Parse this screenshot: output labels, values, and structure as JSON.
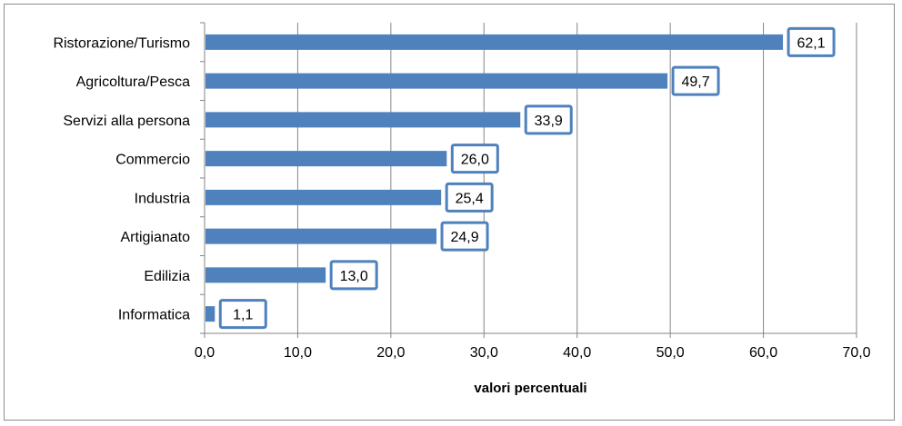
{
  "chart_data": {
    "type": "bar",
    "orientation": "horizontal",
    "title": "",
    "xlabel": "valori percentuali",
    "ylabel": "",
    "xlim": [
      0,
      70
    ],
    "xticks": [
      0,
      10,
      20,
      30,
      40,
      50,
      60,
      70
    ],
    "xtick_labels": [
      "0,0",
      "10,0",
      "20,0",
      "30,0",
      "40,0",
      "50,0",
      "60,0",
      "70,0"
    ],
    "grid": "vertical",
    "categories": [
      "Ristorazione/Turismo",
      "Agricoltura/Pesca",
      "Servizi alla persona",
      "Commercio",
      "Industria",
      "Artigianato",
      "Edilizia",
      "Informatica"
    ],
    "values": [
      62.1,
      49.7,
      33.9,
      26.0,
      25.4,
      24.9,
      13.0,
      1.1
    ],
    "value_labels": [
      "62,1",
      "49,7",
      "33,9",
      "26,0",
      "25,4",
      "24,9",
      "13,0",
      "1,1"
    ],
    "bar_color": "#4f81bd",
    "label_border_color": "#4f81bd",
    "gridline_color": "#868686"
  }
}
